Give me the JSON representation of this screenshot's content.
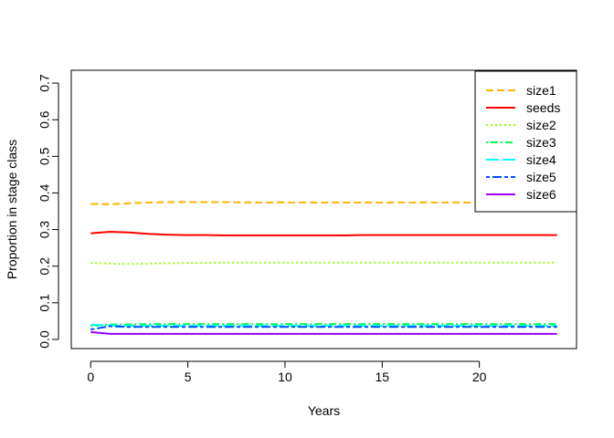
{
  "chart_data": {
    "type": "line",
    "title": "",
    "xlabel": "Years",
    "ylabel": "Proportion in stage class",
    "xlim": [
      -1,
      25
    ],
    "ylim": [
      -0.025,
      0.735
    ],
    "xticks": [
      0,
      5,
      10,
      15,
      20
    ],
    "yticks": [
      0.0,
      0.1,
      0.2,
      0.3,
      0.4,
      0.5,
      0.6,
      0.7
    ],
    "xtick_labels": [
      "0",
      "5",
      "10",
      "15",
      "20"
    ],
    "ytick_labels": [
      "0.0",
      "0.1",
      "0.2",
      "0.3",
      "0.4",
      "0.5",
      "0.6",
      "0.7"
    ],
    "grid": false,
    "legend_position": "top-right",
    "x": [
      0,
      1,
      2,
      3,
      4,
      5,
      6,
      7,
      8,
      9,
      10,
      11,
      12,
      13,
      14,
      15,
      16,
      17,
      18,
      19,
      20,
      21,
      22,
      23,
      24
    ],
    "series": [
      {
        "name": "size1",
        "color": "#FFB300",
        "dash": "dashed",
        "values": [
          0.37,
          0.369,
          0.372,
          0.374,
          0.375,
          0.375,
          0.375,
          0.375,
          0.374,
          0.374,
          0.374,
          0.374,
          0.374,
          0.374,
          0.374,
          0.374,
          0.374,
          0.374,
          0.374,
          0.374,
          0.374,
          0.374,
          0.374,
          0.374,
          0.374
        ]
      },
      {
        "name": "seeds",
        "color": "#FF0000",
        "dash": "solid",
        "values": [
          0.29,
          0.294,
          0.292,
          0.288,
          0.286,
          0.285,
          0.285,
          0.284,
          0.284,
          0.284,
          0.284,
          0.284,
          0.284,
          0.284,
          0.285,
          0.285,
          0.285,
          0.285,
          0.285,
          0.285,
          0.285,
          0.285,
          0.285,
          0.285,
          0.285
        ]
      },
      {
        "name": "size2",
        "color": "#99FF00",
        "dash": "dotted",
        "values": [
          0.209,
          0.207,
          0.206,
          0.207,
          0.208,
          0.209,
          0.209,
          0.21,
          0.21,
          0.21,
          0.21,
          0.21,
          0.21,
          0.21,
          0.21,
          0.21,
          0.21,
          0.21,
          0.21,
          0.21,
          0.21,
          0.21,
          0.21,
          0.21,
          0.21
        ]
      },
      {
        "name": "size3",
        "color": "#00FF4D",
        "dash": "dotdash",
        "values": [
          0.036,
          0.041,
          0.041,
          0.042,
          0.042,
          0.042,
          0.042,
          0.042,
          0.042,
          0.042,
          0.042,
          0.042,
          0.042,
          0.042,
          0.042,
          0.042,
          0.042,
          0.042,
          0.042,
          0.042,
          0.042,
          0.042,
          0.042,
          0.042,
          0.042
        ]
      },
      {
        "name": "size4",
        "color": "#00FFFF",
        "dash": "longdash",
        "values": [
          0.04,
          0.038,
          0.037,
          0.037,
          0.037,
          0.037,
          0.037,
          0.037,
          0.037,
          0.037,
          0.037,
          0.037,
          0.037,
          0.037,
          0.037,
          0.037,
          0.037,
          0.037,
          0.037,
          0.037,
          0.037,
          0.037,
          0.037,
          0.037,
          0.037
        ]
      },
      {
        "name": "size5",
        "color": "#004DFF",
        "dash": "twodash",
        "values": [
          0.027,
          0.036,
          0.034,
          0.034,
          0.034,
          0.034,
          0.034,
          0.034,
          0.034,
          0.034,
          0.034,
          0.034,
          0.034,
          0.034,
          0.034,
          0.034,
          0.034,
          0.034,
          0.034,
          0.034,
          0.034,
          0.034,
          0.034,
          0.034,
          0.034
        ]
      },
      {
        "name": "size6",
        "color": "#9900FF",
        "dash": "solid",
        "values": [
          0.02,
          0.015,
          0.015,
          0.015,
          0.015,
          0.015,
          0.015,
          0.015,
          0.015,
          0.015,
          0.015,
          0.015,
          0.015,
          0.015,
          0.015,
          0.015,
          0.015,
          0.015,
          0.015,
          0.015,
          0.015,
          0.015,
          0.015,
          0.015,
          0.015
        ]
      }
    ]
  }
}
